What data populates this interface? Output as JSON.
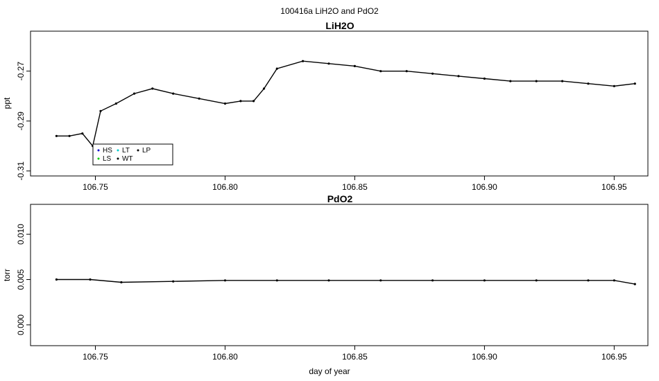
{
  "figure": {
    "title": "100416a   LiH2O and PdO2",
    "xlabel": "day of year"
  },
  "chart_data": [
    {
      "type": "line",
      "title": "LiH2O",
      "xlabel": "",
      "ylabel": "ppt",
      "xlim": [
        106.725,
        106.963
      ],
      "ylim": [
        -0.312,
        -0.254
      ],
      "xticks": [
        106.75,
        106.8,
        106.85,
        106.9,
        106.95
      ],
      "xtick_labels": [
        "106.75",
        "106.80",
        "106.85",
        "106.90",
        "106.95"
      ],
      "yticks": [
        -0.31,
        -0.29,
        -0.27
      ],
      "ytick_labels": [
        "-0.31",
        "-0.29",
        "-0.27"
      ],
      "series": [
        {
          "name": "",
          "color": "#000000",
          "x": [
            106.735,
            106.74,
            106.745,
            106.749,
            106.752,
            106.758,
            106.765,
            106.772,
            106.78,
            106.79,
            106.8,
            106.806,
            106.811,
            106.815,
            106.82,
            106.83,
            106.84,
            106.85,
            106.86,
            106.87,
            106.88,
            106.89,
            106.9,
            106.91,
            106.92,
            106.93,
            106.94,
            106.95,
            106.958
          ],
          "y": [
            -0.296,
            -0.296,
            -0.295,
            -0.3,
            -0.286,
            -0.283,
            -0.279,
            -0.277,
            -0.279,
            -0.281,
            -0.283,
            -0.282,
            -0.282,
            -0.277,
            -0.269,
            -0.266,
            -0.267,
            -0.268,
            -0.27,
            -0.27,
            -0.271,
            -0.272,
            -0.273,
            -0.274,
            -0.274,
            -0.274,
            -0.275,
            -0.276,
            -0.275
          ]
        }
      ],
      "legend": {
        "placement": "bottom-left",
        "entries": [
          {
            "label": "HS",
            "color": "#0000cd"
          },
          {
            "label": "LT",
            "color": "#00cdcd"
          },
          {
            "label": "LP",
            "color": "#000000"
          },
          {
            "label": "LS",
            "color": "#00cd00"
          },
          {
            "label": "WT",
            "color": "#000000"
          }
        ]
      }
    },
    {
      "type": "line",
      "title": "PdO2",
      "xlabel": "day of year",
      "ylabel": "torr",
      "xlim": [
        106.725,
        106.963
      ],
      "ylim": [
        -0.0023,
        0.0133
      ],
      "xticks": [
        106.75,
        106.8,
        106.85,
        106.9,
        106.95
      ],
      "xtick_labels": [
        "106.75",
        "106.80",
        "106.85",
        "106.90",
        "106.95"
      ],
      "yticks": [
        0.0,
        0.005,
        0.01
      ],
      "ytick_labels": [
        "0.000",
        "0.005",
        "0.010"
      ],
      "series": [
        {
          "name": "",
          "color": "#000000",
          "x": [
            106.735,
            106.748,
            106.76,
            106.78,
            106.8,
            106.82,
            106.84,
            106.86,
            106.88,
            106.9,
            106.92,
            106.94,
            106.95,
            106.958
          ],
          "y": [
            0.005,
            0.005,
            0.0047,
            0.0048,
            0.0049,
            0.0049,
            0.0049,
            0.0049,
            0.0049,
            0.0049,
            0.0049,
            0.0049,
            0.0049,
            0.0045
          ]
        }
      ]
    }
  ]
}
